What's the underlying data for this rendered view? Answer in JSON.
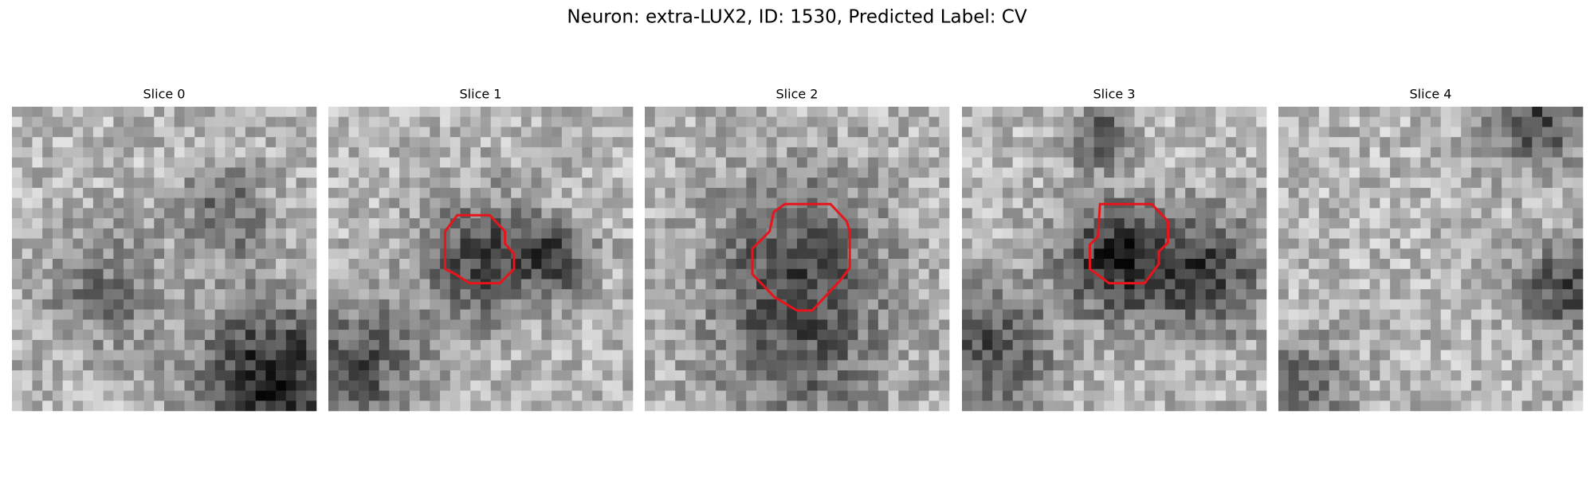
{
  "title": "Neuron: extra-LUX2, ID: 1530, Predicted Label: CV",
  "panels": [
    {
      "title": "Slice 0"
    },
    {
      "title": "Slice 1"
    },
    {
      "title": "Slice 2"
    },
    {
      "title": "Slice 3"
    },
    {
      "title": "Slice 4"
    }
  ]
}
